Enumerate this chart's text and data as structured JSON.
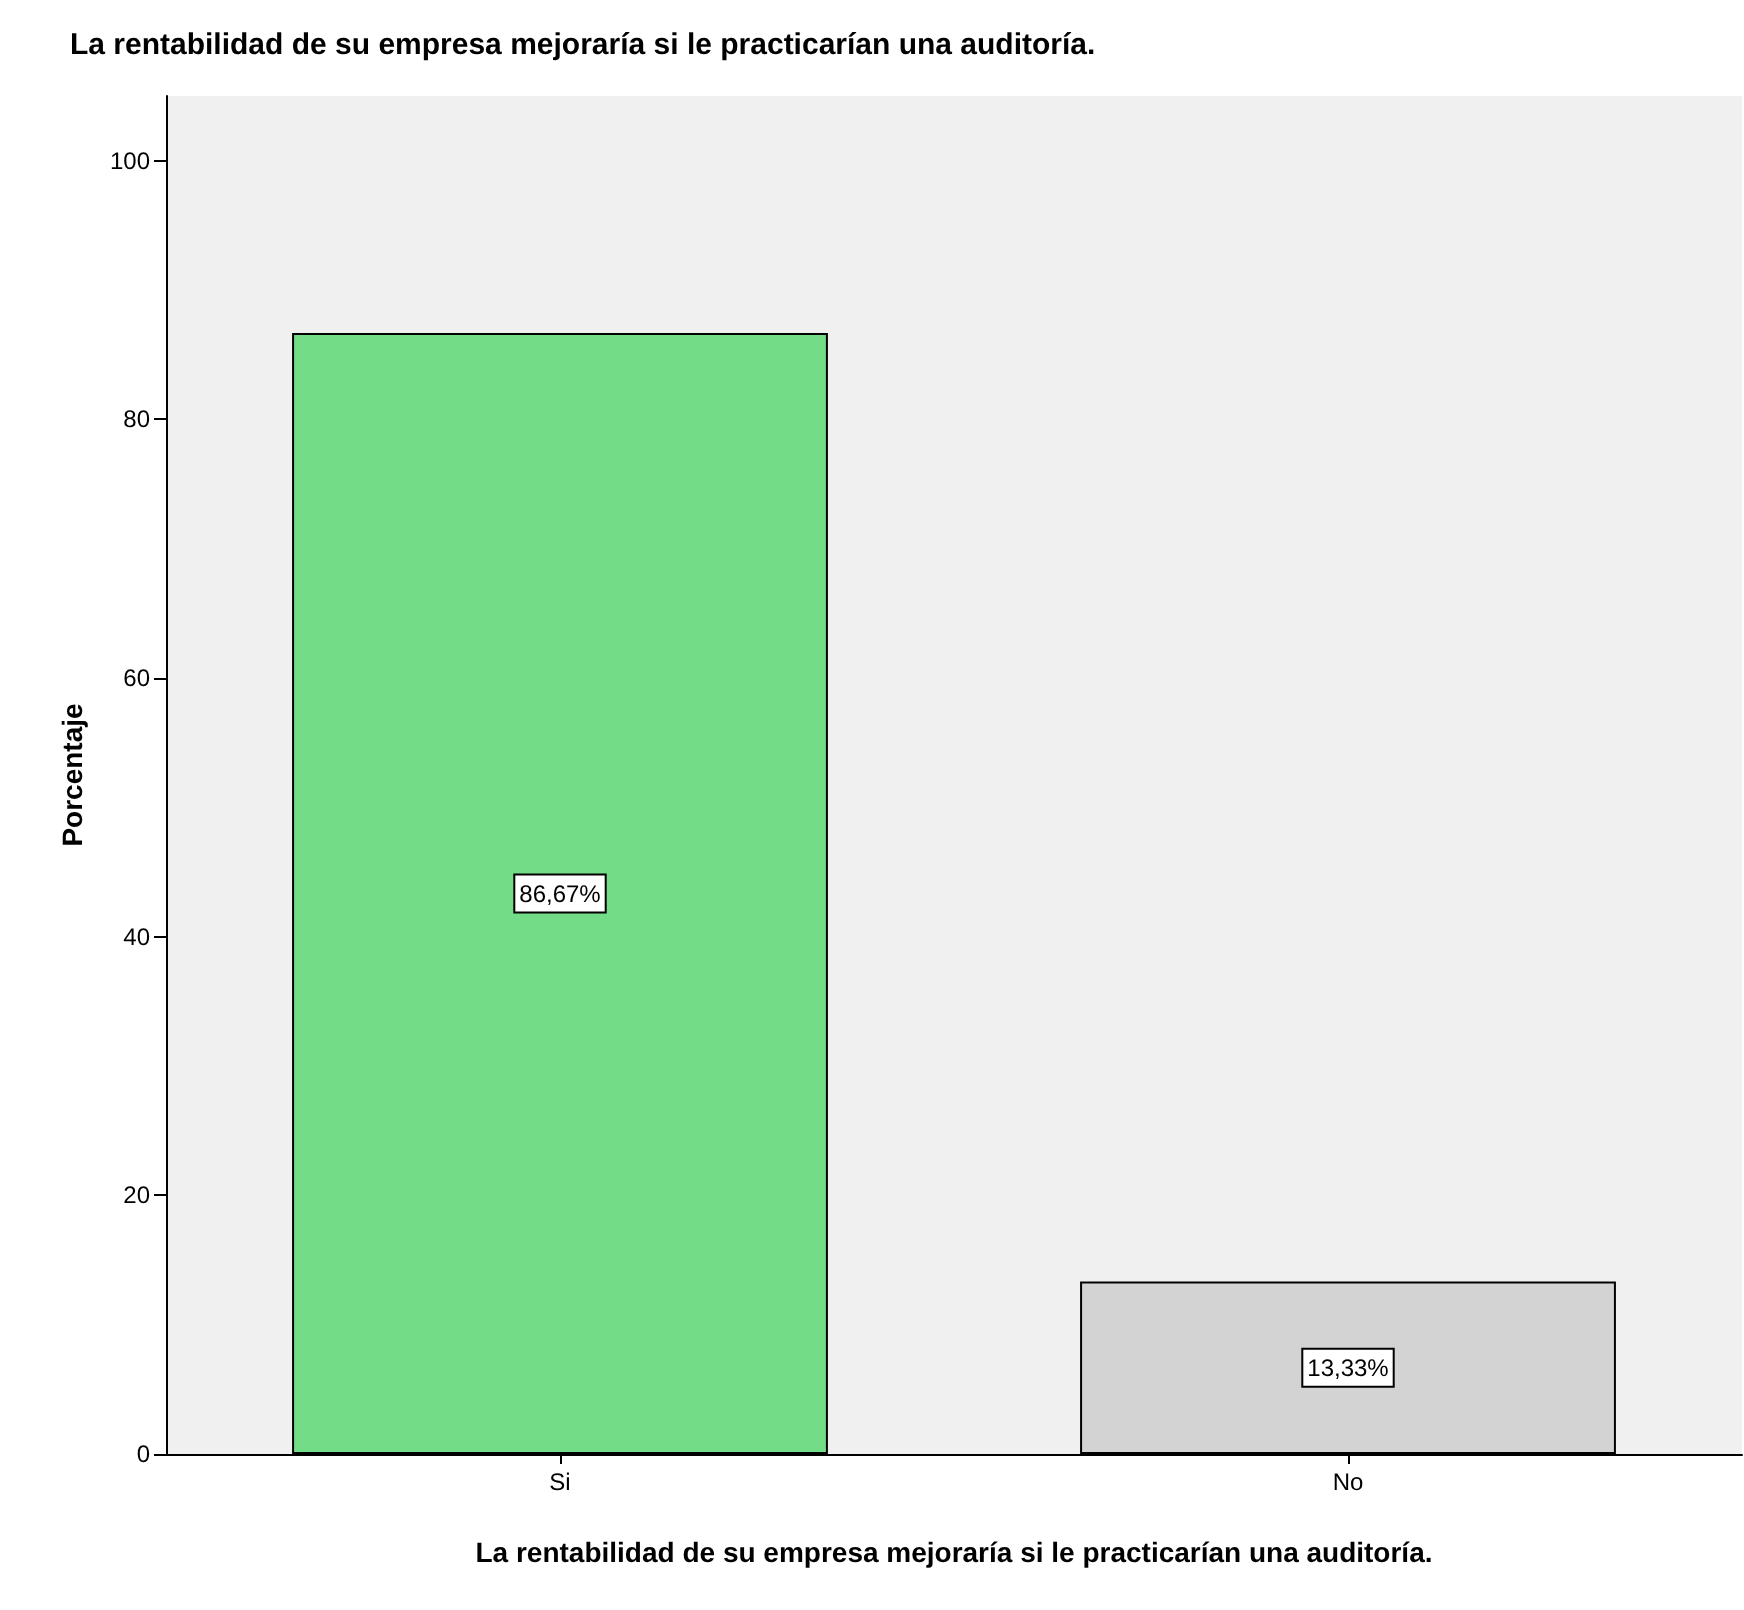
{
  "chart_data": {
    "type": "bar",
    "title": "La rentabilidad de su empresa mejoraría si le practicarían una auditoría.",
    "xlabel": "La rentabilidad de su empresa mejoraría si le practicarían una auditoría.",
    "ylabel": "Porcentaje",
    "categories": [
      "Si",
      "No"
    ],
    "values": [
      86.67,
      13.33
    ],
    "colors": [
      "#72dc86",
      "#d3d3d3"
    ],
    "value_labels": [
      "86,67%",
      "13,33%"
    ],
    "ylim": [
      0,
      105
    ],
    "yticks": [
      0,
      20,
      40,
      60,
      80,
      100
    ]
  }
}
